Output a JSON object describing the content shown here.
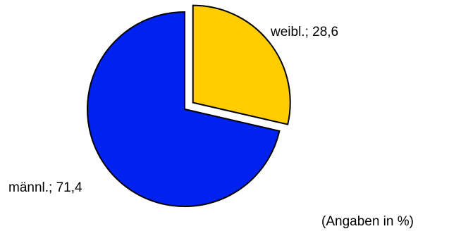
{
  "chart_data": {
    "type": "pie",
    "slices": [
      {
        "label": "weibl.",
        "value": 28.6,
        "value_text": "28,6",
        "color": "#FFCC00",
        "exploded": true
      },
      {
        "label": "männl.",
        "value": 71.4,
        "value_text": "71,4",
        "color": "#0022EE",
        "exploded": false
      }
    ],
    "start_angle_deg": 0,
    "direction": "clockwise",
    "legend": "none"
  },
  "note": "(Angaben in %)"
}
